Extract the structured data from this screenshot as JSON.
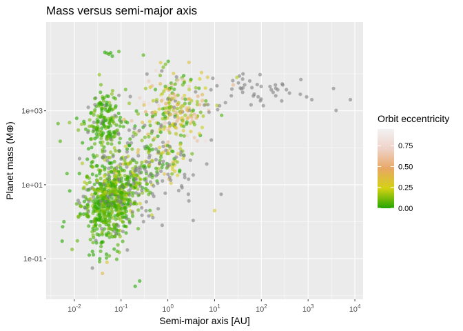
{
  "chart_data": {
    "type": "scatter",
    "title": "Mass versus semi-major axis",
    "xlabel": "Semi-major axis [AU]",
    "ylabel": "Planet mass (M⊕)",
    "x_scale": "log10",
    "y_scale": "log10",
    "xlim": [
      0.0025,
      15000
    ],
    "ylim": [
      0.008,
      250000
    ],
    "x_ticks": [
      {
        "value": 0.01,
        "base": "10",
        "exp": "-2"
      },
      {
        "value": 0.1,
        "base": "10",
        "exp": "-1"
      },
      {
        "value": 1,
        "base": "10",
        "exp": "0"
      },
      {
        "value": 10,
        "base": "10",
        "exp": "1"
      },
      {
        "value": 100,
        "base": "10",
        "exp": "2"
      },
      {
        "value": 1000,
        "base": "10",
        "exp": "3"
      },
      {
        "value": 10000,
        "base": "10",
        "exp": "4"
      }
    ],
    "y_ticks": [
      {
        "value": 0.1,
        "label": "1e-01"
      },
      {
        "value": 10,
        "label": "1e+01"
      },
      {
        "value": 1000,
        "label": "1e+03"
      }
    ],
    "grid": true,
    "legend": {
      "title": "Orbit eccentricity",
      "position": "right",
      "ticks": [
        {
          "value": 0.0,
          "label": "0.00"
        },
        {
          "value": 0.25,
          "label": "0.25"
        },
        {
          "value": 0.5,
          "label": "0.50"
        },
        {
          "value": 0.75,
          "label": "0.75"
        }
      ],
      "range": [
        0,
        0.95
      ],
      "colors": [
        "#22a600",
        "#d4d213",
        "#e8a865",
        "#efd2c9",
        "#f2f2f2"
      ]
    },
    "na_color": "#808080",
    "point_opacity": 0.6,
    "clusters": [
      {
        "n": 380,
        "log_x_mean": -1.3,
        "log_x_sd": 0.28,
        "log_y_mean": 0.45,
        "log_y_sd": 0.38,
        "ecc_max": 0.18
      },
      {
        "n": 260,
        "log_x_mean": -1.05,
        "log_x_sd": 0.35,
        "log_y_mean": 1.05,
        "log_y_sd": 0.4,
        "ecc_max": 0.25
      },
      {
        "n": 200,
        "log_x_mean": -1.35,
        "log_x_sd": 0.2,
        "log_y_mean": 2.6,
        "log_y_sd": 0.5,
        "ecc_max": 0.15
      },
      {
        "n": 260,
        "log_x_mean": 0.15,
        "log_x_sd": 0.35,
        "log_y_mean": 3.0,
        "log_y_sd": 0.45,
        "ecc_max": 0.9
      },
      {
        "n": 90,
        "log_x_mean": -0.2,
        "log_x_sd": 0.35,
        "log_y_mean": 1.8,
        "log_y_sd": 0.45,
        "ecc_max": 0.4
      },
      {
        "n": 45,
        "log_x_mean": 1.9,
        "log_x_sd": 0.6,
        "log_y_mean": 3.55,
        "log_y_sd": 0.25,
        "ecc_max": -1
      },
      {
        "n": 110,
        "log_x_mean": -0.5,
        "log_x_sd": 0.6,
        "log_y_mean": 1.4,
        "log_y_sd": 0.8,
        "ecc_max": -1
      },
      {
        "n": 50,
        "log_x_mean": -1.35,
        "log_x_sd": 0.25,
        "log_y_mean": -0.35,
        "log_y_sd": 0.3,
        "ecc_max": 0.12
      }
    ],
    "extra_points": [
      {
        "x": 0.045,
        "y": 38000,
        "e": 0.0
      },
      {
        "x": 0.05,
        "y": 36000,
        "e": 0.02
      },
      {
        "x": 0.055,
        "y": 34000,
        "e": 0.03
      },
      {
        "x": 0.06,
        "y": 37000,
        "e": 0.01
      },
      {
        "x": 0.065,
        "y": 30000,
        "e": 0.0
      },
      {
        "x": 0.09,
        "y": 40000,
        "e": 0.05
      },
      {
        "x": 0.3,
        "y": 32000,
        "e": 0.05
      },
      {
        "x": 0.7,
        "y": 20000,
        "e": 0.3
      },
      {
        "x": 0.8,
        "y": 15000,
        "e": 0.1
      },
      {
        "x": 0.0045,
        "y": 450,
        "e": 0.05
      },
      {
        "x": 0.005,
        "y": 150,
        "e": 0.05
      },
      {
        "x": 0.006,
        "y": 1.0,
        "e": 0.0
      },
      {
        "x": 0.0055,
        "y": 0.3,
        "e": 0.0
      },
      {
        "x": 0.007,
        "y": 20,
        "e": 0.02
      },
      {
        "x": 10,
        "y": 2,
        "e": 0.3
      },
      {
        "x": 0.25,
        "y": 0.025,
        "e": 0.0
      },
      {
        "x": 0.2,
        "y": 0.018,
        "e": 0.0
      },
      {
        "x": 0.04,
        "y": 0.04,
        "e": 0.4
      },
      {
        "x": 0.05,
        "y": 0.08,
        "e": 0.3
      },
      {
        "x": 0.035,
        "y": 0.1,
        "e": 0.0
      },
      {
        "x": 8000,
        "y": 2000,
        "e": -1
      },
      {
        "x": 3500,
        "y": 4000,
        "e": -1
      },
      {
        "x": 700,
        "y": 7000,
        "e": -1
      },
      {
        "x": 200,
        "y": 5000,
        "e": -1
      },
      {
        "x": 400,
        "y": 3000,
        "e": -1
      },
      {
        "x": 1200,
        "y": 2000,
        "e": -1
      },
      {
        "x": 30,
        "y": 8000,
        "e": 0.2
      },
      {
        "x": 12,
        "y": 6000,
        "e": 0.85
      },
      {
        "x": 25,
        "y": 5000,
        "e": 0.55
      },
      {
        "x": 2,
        "y": 7000,
        "e": 0.7
      }
    ]
  }
}
